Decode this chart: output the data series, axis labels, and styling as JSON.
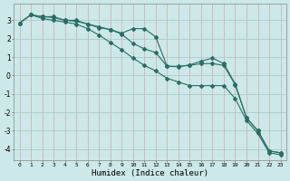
{
  "xlabel": "Humidex (Indice chaleur)",
  "xlim": [
    -0.5,
    23.5
  ],
  "ylim": [
    -4.6,
    3.9
  ],
  "xticks": [
    0,
    1,
    2,
    3,
    4,
    5,
    6,
    7,
    8,
    9,
    10,
    11,
    12,
    13,
    14,
    15,
    16,
    17,
    18,
    19,
    20,
    21,
    22,
    23
  ],
  "yticks": [
    -4,
    -3,
    -2,
    -1,
    0,
    1,
    2,
    3
  ],
  "line_color": "#2a6e62",
  "bg_color": "#cce8e8",
  "grid_color_h": "#aacccc",
  "grid_color_v": "#d4aaaa",
  "lines": [
    [
      2.85,
      3.3,
      3.2,
      3.15,
      3.0,
      2.95,
      2.8,
      2.6,
      2.5,
      2.3,
      2.55,
      2.55,
      2.1,
      0.5,
      0.5,
      0.55,
      0.65,
      0.65,
      0.55,
      -0.5,
      -2.3,
      -3.0,
      -4.1,
      -4.2
    ],
    [
      2.85,
      3.3,
      3.2,
      3.2,
      3.0,
      3.0,
      2.8,
      2.65,
      2.5,
      2.25,
      1.75,
      1.45,
      1.25,
      0.5,
      0.48,
      0.58,
      0.78,
      0.95,
      0.65,
      -0.45,
      -2.3,
      -3.0,
      -4.1,
      -4.2
    ],
    [
      2.85,
      3.3,
      3.1,
      3.0,
      2.9,
      2.8,
      2.55,
      2.2,
      1.8,
      1.4,
      0.95,
      0.55,
      0.25,
      -0.15,
      -0.35,
      -0.55,
      -0.55,
      -0.55,
      -0.55,
      -1.25,
      -2.45,
      -3.15,
      -4.2,
      -4.3
    ]
  ]
}
